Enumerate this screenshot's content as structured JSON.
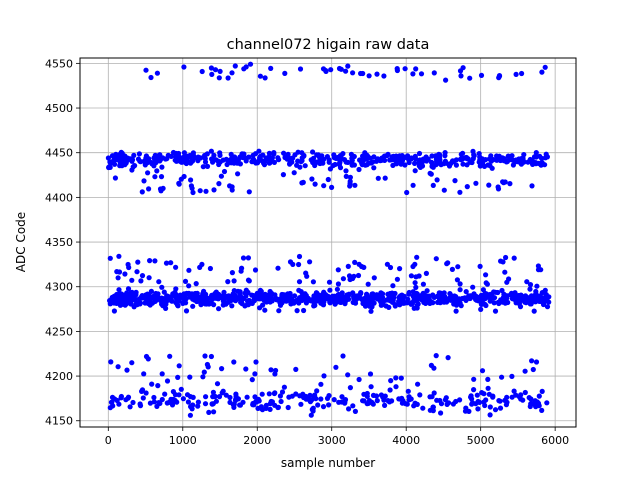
{
  "chart_data": {
    "type": "scatter",
    "title": "channel072 higain raw data",
    "xlabel": "sample number",
    "ylabel": "ADC Code",
    "xlim": [
      -380,
      6280
    ],
    "ylim": [
      4143,
      4556
    ],
    "xticks": [
      0,
      1000,
      2000,
      3000,
      4000,
      5000,
      6000
    ],
    "xtick_labels": [
      "0",
      "1000",
      "2000",
      "3000",
      "4000",
      "5000",
      "6000"
    ],
    "yticks": [
      4150,
      4200,
      4250,
      4300,
      4350,
      4400,
      4450,
      4500,
      4550
    ],
    "ytick_labels": [
      "4150",
      "4200",
      "4250",
      "4300",
      "4350",
      "4400",
      "4450",
      "4500",
      "4550"
    ],
    "grid": true,
    "legend": "none",
    "marker_color": "#0000ff",
    "series": [
      {
        "n_points": 5920,
        "x_range": [
          0,
          5920
        ],
        "note": "",
        "clusters": [
          {
            "center": 4540,
            "spread": 4,
            "outlier_hi": 0,
            "outlier_lo": 0
          },
          {
            "center": 4442,
            "spread": 4,
            "tail_below_to": 4405
          },
          {
            "center": 4287,
            "spread": 4,
            "tail_above_to": 4335,
            "tail_below_to": 4272
          },
          {
            "center": 4172,
            "spread": 6,
            "tail_above_to": 4223,
            "tail_below_to": 4155
          }
        ]
      }
    ]
  }
}
